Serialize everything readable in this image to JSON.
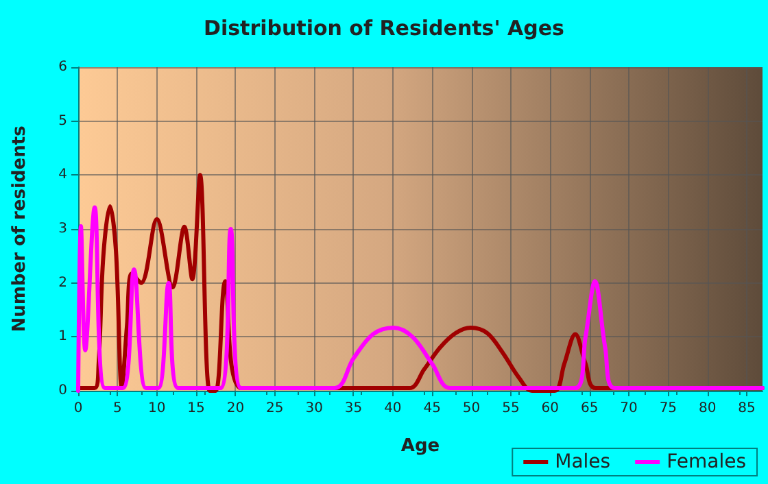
{
  "chart_data": {
    "type": "line",
    "title": "Distribution of Residents' Ages",
    "xlabel": "Age",
    "ylabel": "Number of residents",
    "xlim": [
      0,
      87
    ],
    "xticks": [
      0,
      5,
      10,
      15,
      20,
      25,
      30,
      35,
      40,
      45,
      50,
      55,
      60,
      65,
      70,
      75,
      80,
      85
    ],
    "ylim": [
      0,
      6
    ],
    "yticks": [
      0,
      1,
      2,
      3,
      4,
      5,
      6
    ],
    "grid": true,
    "legend": "bottom right",
    "marker": "none",
    "line_style": "solid",
    "series": [
      {
        "name": "Males",
        "color": "#a00000",
        "x": [
          0,
          2.1,
          2.6,
          3.2,
          4.05,
          4.8,
          5.55,
          6.2,
          6.8,
          8.0,
          10.0,
          12.0,
          13.5,
          14.5,
          15.5,
          16.7,
          17.5,
          18.7,
          20.7,
          30,
          42.1,
          44,
          46,
          48,
          49.9,
          52,
          54,
          56,
          57.7,
          60.6,
          61.8,
          63.2,
          64.5,
          65.8,
          87
        ],
        "values": [
          0.05,
          0.05,
          0.5,
          2.5,
          3.42,
          2.6,
          0.05,
          1.2,
          2.17,
          2.0,
          3.18,
          1.92,
          3.04,
          2.07,
          4.0,
          0,
          0,
          2.03,
          0.05,
          0.05,
          0.05,
          0.4,
          0.8,
          1.07,
          1.17,
          1.07,
          0.7,
          0.25,
          0,
          0,
          0.5,
          1.05,
          0.5,
          0.05,
          0.05
        ]
      },
      {
        "name": "Females",
        "color": "#ff00ff",
        "x": [
          0,
          0.35,
          0.9,
          2.1,
          3.4,
          5.7,
          7.1,
          8.6,
          10.2,
          11.5,
          12.7,
          18.1,
          19.4,
          20.7,
          32.6,
          35,
          37.5,
          40.1,
          42.5,
          45,
          47.3,
          63.2,
          64.5,
          65.7,
          67,
          68.2,
          87
        ],
        "values": [
          0,
          3.05,
          0.75,
          3.4,
          0.05,
          0.05,
          2.25,
          0.05,
          0.05,
          2.0,
          0.05,
          0.05,
          3.0,
          0.05,
          0.05,
          0.6,
          1.05,
          1.17,
          1.0,
          0.5,
          0.05,
          0.05,
          1.0,
          2.03,
          0.8,
          0.05,
          0.05
        ]
      }
    ]
  }
}
